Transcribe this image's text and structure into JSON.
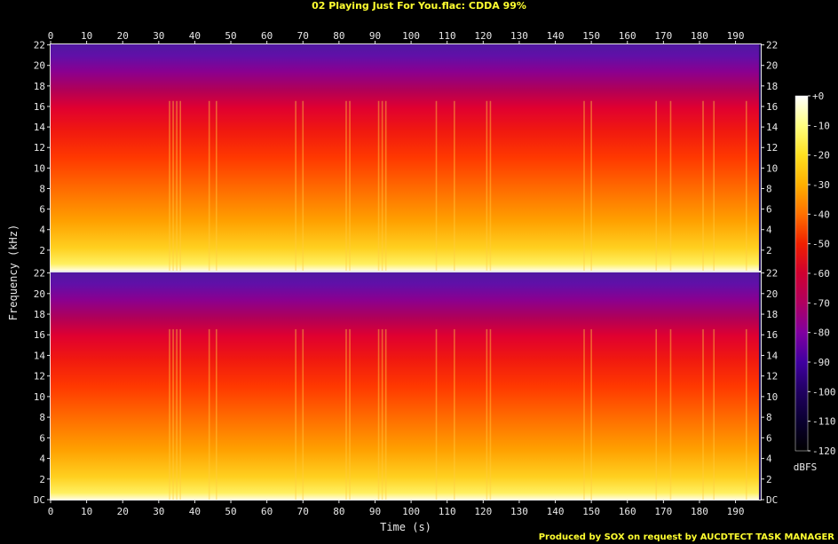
{
  "header": {
    "title": "02 Playing Just For You.flac: CDDA 99%"
  },
  "footer": {
    "credit": "Produced by SOX on request by AUCDTECT TASK MANAGER"
  },
  "chart_data": {
    "type": "heatmap",
    "subtype": "spectrogram",
    "channels": 2,
    "xlabel": "Time (s)",
    "ylabel": "Frequency (kHz)",
    "xlim": [
      0,
      197
    ],
    "x_ticks": [
      0,
      10,
      20,
      30,
      40,
      50,
      60,
      70,
      80,
      90,
      100,
      110,
      120,
      130,
      140,
      150,
      160,
      170,
      180,
      190
    ],
    "ylim": [
      0,
      22.05
    ],
    "y_ticks": [
      {
        "value": 0,
        "label": "DC"
      },
      {
        "value": 2,
        "label": "2"
      },
      {
        "value": 4,
        "label": "4"
      },
      {
        "value": 6,
        "label": "6"
      },
      {
        "value": 8,
        "label": "8"
      },
      {
        "value": 10,
        "label": "10"
      },
      {
        "value": 12,
        "label": "12"
      },
      {
        "value": 14,
        "label": "14"
      },
      {
        "value": 16,
        "label": "16"
      },
      {
        "value": 18,
        "label": "18"
      },
      {
        "value": 20,
        "label": "20"
      },
      {
        "value": 22,
        "label": "22"
      }
    ],
    "colorbar": {
      "label": "dBFS",
      "range": [
        -120,
        0
      ],
      "ticks": [
        "+0",
        "-10",
        "-20",
        "-30",
        "-40",
        "-50",
        "-60",
        "-70",
        "-80",
        "-90",
        "-100",
        "-110",
        "-120"
      ],
      "stops": [
        "#ffffff",
        "#ffff80",
        "#ffe020",
        "#ffb000",
        "#ff7000",
        "#f02000",
        "#d00030",
        "#b00060",
        "#8000a0",
        "#4000a0",
        "#200060",
        "#0a0030",
        "#000000"
      ]
    },
    "content_end_s": 196.5,
    "loud_events_s": [
      33,
      34,
      35,
      36,
      44,
      46,
      68,
      70,
      82,
      83,
      91,
      92,
      93,
      107,
      112,
      121,
      122,
      148,
      150,
      168,
      172,
      181,
      184,
      193
    ]
  }
}
